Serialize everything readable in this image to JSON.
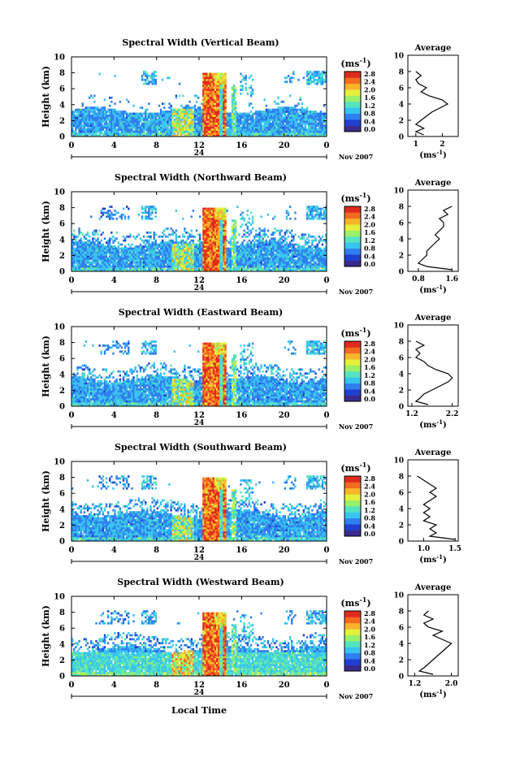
{
  "common": {
    "ylabel": "Height (km)",
    "xticks": [
      "0",
      "4",
      "8",
      "12",
      "16",
      "20",
      "0"
    ],
    "day_label": "24",
    "date_label": "Nov 2007",
    "colorbar_unit_base": "(ms",
    "colorbar_unit_exp": "-1",
    "colorbar_unit_close": ")",
    "colorbar_ticks": [
      "2.8",
      "2.4",
      "2.0",
      "1.6",
      "1.2",
      "0.8",
      "0.4",
      "0.0"
    ],
    "yticks": [
      "0",
      "2",
      "4",
      "6",
      "8",
      "10"
    ],
    "avg_title": "Average",
    "avg_unit_base": "(ms",
    "avg_unit_exp": "-1",
    "avg_unit_close": ")",
    "xlabel_bottom": "Local Time",
    "colormap": [
      "#3a2a8c",
      "#1f3fcf",
      "#2f7ff0",
      "#39c3ef",
      "#55e4c0",
      "#9af06a",
      "#e4f03a",
      "#f7b52a",
      "#f36a21",
      "#e02a1d"
    ]
  },
  "chart_data": [
    {
      "type": "heatmap",
      "title": "Spectral Width (Vertical Beam)",
      "x_range": [
        0,
        24
      ],
      "y_range": [
        0,
        10
      ],
      "clim": [
        0,
        2.8
      ],
      "average": {
        "type": "line",
        "xticks": [
          "1",
          "2"
        ],
        "xlim": [
          0.7,
          2.6
        ],
        "ylim": [
          0,
          10
        ],
        "points": [
          [
            1.3,
            0.2
          ],
          [
            1.0,
            0.6
          ],
          [
            1.3,
            1.0
          ],
          [
            1.0,
            1.5
          ],
          [
            1.2,
            2.0
          ],
          [
            1.4,
            2.5
          ],
          [
            1.6,
            3.0
          ],
          [
            1.9,
            3.5
          ],
          [
            2.2,
            4.0
          ],
          [
            2.0,
            4.5
          ],
          [
            1.5,
            5.0
          ],
          [
            1.2,
            5.5
          ],
          [
            1.4,
            6.0
          ],
          [
            1.1,
            6.5
          ],
          [
            1.0,
            7.0
          ],
          [
            1.2,
            7.5
          ],
          [
            1.0,
            8.0
          ]
        ]
      }
    },
    {
      "type": "heatmap",
      "title": "Spectral Width (Northward Beam)",
      "x_range": [
        0,
        24
      ],
      "y_range": [
        0,
        10
      ],
      "clim": [
        0,
        2.8
      ],
      "average": {
        "type": "line",
        "xticks": [
          "0.8",
          "1.6"
        ],
        "xlim": [
          0.55,
          1.75
        ],
        "ylim": [
          0,
          10
        ],
        "points": [
          [
            1.6,
            0.2
          ],
          [
            1.0,
            0.6
          ],
          [
            0.8,
            1.0
          ],
          [
            0.9,
            1.5
          ],
          [
            1.0,
            2.0
          ],
          [
            1.0,
            2.5
          ],
          [
            1.1,
            3.0
          ],
          [
            1.2,
            3.5
          ],
          [
            1.3,
            4.0
          ],
          [
            1.2,
            4.5
          ],
          [
            1.3,
            5.0
          ],
          [
            1.4,
            5.5
          ],
          [
            1.4,
            6.0
          ],
          [
            1.3,
            6.5
          ],
          [
            1.5,
            7.0
          ],
          [
            1.4,
            7.5
          ],
          [
            1.6,
            8.0
          ]
        ]
      }
    },
    {
      "type": "heatmap",
      "title": "Spectral Width (Eastward Beam)",
      "x_range": [
        0,
        24
      ],
      "y_range": [
        0,
        10
      ],
      "clim": [
        0,
        2.8
      ],
      "average": {
        "type": "line",
        "xticks": [
          "1.2",
          "2.2"
        ],
        "xlim": [
          1.1,
          2.35
        ],
        "ylim": [
          0,
          10
        ],
        "points": [
          [
            1.6,
            0.2
          ],
          [
            1.3,
            0.6
          ],
          [
            1.4,
            1.0
          ],
          [
            1.5,
            1.5
          ],
          [
            1.7,
            2.0
          ],
          [
            1.9,
            2.5
          ],
          [
            2.1,
            3.0
          ],
          [
            2.2,
            3.5
          ],
          [
            2.1,
            4.0
          ],
          [
            1.8,
            4.5
          ],
          [
            1.6,
            5.0
          ],
          [
            1.5,
            5.5
          ],
          [
            1.3,
            6.0
          ],
          [
            1.4,
            6.5
          ],
          [
            1.3,
            7.0
          ],
          [
            1.5,
            7.5
          ],
          [
            1.3,
            8.0
          ]
        ]
      }
    },
    {
      "type": "heatmap",
      "title": "Spectral Width (Southward Beam)",
      "x_range": [
        0,
        24
      ],
      "y_range": [
        0,
        10
      ],
      "clim": [
        0,
        2.8
      ],
      "average": {
        "type": "line",
        "xticks": [
          "1.0",
          "1.5"
        ],
        "xlim": [
          0.75,
          1.55
        ],
        "ylim": [
          0,
          10
        ],
        "points": [
          [
            1.5,
            0.2
          ],
          [
            1.1,
            0.6
          ],
          [
            1.2,
            1.0
          ],
          [
            1.1,
            1.5
          ],
          [
            1.2,
            2.0
          ],
          [
            1.0,
            2.5
          ],
          [
            1.1,
            3.0
          ],
          [
            1.0,
            3.5
          ],
          [
            1.1,
            4.0
          ],
          [
            1.0,
            4.5
          ],
          [
            1.1,
            5.0
          ],
          [
            1.2,
            5.5
          ],
          [
            1.1,
            6.0
          ],
          [
            1.2,
            6.5
          ],
          [
            1.1,
            7.0
          ],
          [
            1.0,
            7.5
          ],
          [
            0.9,
            8.0
          ]
        ]
      }
    },
    {
      "type": "heatmap",
      "title": "Spectral Width (Westward Beam)",
      "x_range": [
        0,
        24
      ],
      "y_range": [
        0,
        10
      ],
      "clim": [
        0,
        2.8
      ],
      "average": {
        "type": "line",
        "xticks": [
          "1.2",
          "2.0"
        ],
        "xlim": [
          1.05,
          2.15
        ],
        "ylim": [
          0,
          10
        ],
        "points": [
          [
            1.6,
            0.2
          ],
          [
            1.3,
            0.6
          ],
          [
            1.4,
            1.0
          ],
          [
            1.5,
            1.5
          ],
          [
            1.6,
            2.0
          ],
          [
            1.7,
            2.5
          ],
          [
            1.8,
            3.0
          ],
          [
            1.9,
            3.5
          ],
          [
            2.0,
            4.0
          ],
          [
            1.8,
            4.5
          ],
          [
            1.6,
            5.0
          ],
          [
            1.8,
            5.5
          ],
          [
            1.5,
            6.0
          ],
          [
            1.4,
            6.5
          ],
          [
            1.6,
            7.0
          ],
          [
            1.4,
            7.5
          ],
          [
            1.5,
            8.0
          ]
        ]
      }
    }
  ]
}
